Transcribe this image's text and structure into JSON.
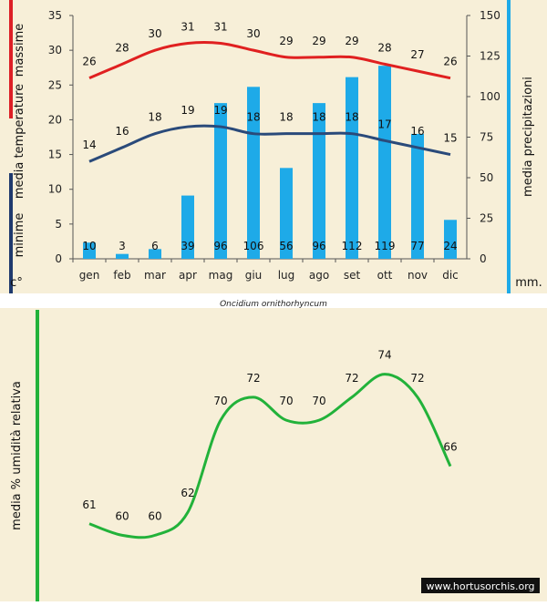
{
  "colors": {
    "background": "#ffffff",
    "panel": "#f7efd8",
    "max_line": "#e02020",
    "min_line": "#2a4a7a",
    "bars": "#1eaae8",
    "humidity_line": "#22b23a",
    "max_marker": "#dd1f26",
    "min_marker": "#1f3a6e",
    "precip_marker": "#1eaae8"
  },
  "caption": "Oncidium ornithorhyncum",
  "watermark": "www.hortusorchis.org",
  "chart_data": [
    {
      "type": "bar+line",
      "categories": [
        "gen",
        "feb",
        "mar",
        "apr",
        "mag",
        "giu",
        "lug",
        "ago",
        "set",
        "ott",
        "nov",
        "dic"
      ],
      "left_axis": {
        "title_parts": {
          "max": "massime",
          "mid": "media temperature",
          "min": "minime",
          "unit": "c°"
        },
        "ylim": [
          0,
          35
        ],
        "ticks": [
          0,
          5,
          10,
          15,
          20,
          25,
          30,
          35
        ]
      },
      "right_axis": {
        "title": "media precipitazioni",
        "unit": "mm.",
        "ylim": [
          0,
          150
        ],
        "ticks": [
          0,
          25,
          50,
          75,
          100,
          125,
          150
        ]
      },
      "series": [
        {
          "kind": "line",
          "axis": "left",
          "values": [
            26,
            28,
            30,
            31,
            31,
            30,
            29,
            29,
            29,
            28,
            27,
            26
          ]
        },
        {
          "kind": "line",
          "axis": "left",
          "values": [
            14,
            16,
            18,
            19,
            19,
            18,
            18,
            18,
            18,
            17,
            16,
            15
          ]
        },
        {
          "kind": "bar",
          "axis": "right",
          "values": [
            10,
            3,
            6,
            39,
            96,
            106,
            56,
            96,
            112,
            119,
            77,
            24
          ]
        }
      ]
    },
    {
      "type": "line",
      "ylabel": "media % umidità relativa",
      "series": [
        {
          "values": [
            61,
            60,
            60,
            62,
            70,
            72,
            70,
            70,
            72,
            74,
            72,
            66
          ]
        }
      ]
    }
  ]
}
